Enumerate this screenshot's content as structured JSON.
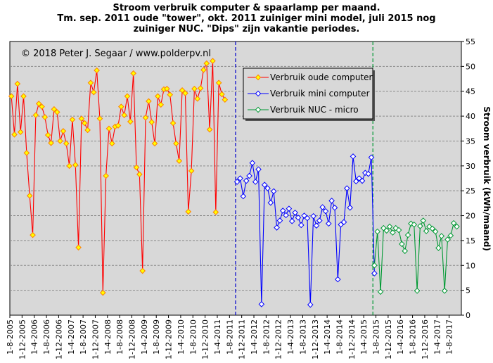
{
  "chart_data": {
    "type": "line",
    "title": [
      "Stroom verbruik computer & spaarlamp per maand.",
      "Tm. sep. 2011 oude \"tower\", okt. 2011 zuiniger mini model, juli 2015 nog",
      "zuiniger NUC. \"Dips\" zijn vakantie periodes."
    ],
    "copyright": "© 2018  Peter J. Segaar / www.polderpv.nl",
    "ylabel": "Stroom verbruik (kWh/maand)",
    "ylim": [
      0,
      55
    ],
    "yticks": [
      0,
      5,
      10,
      15,
      20,
      25,
      30,
      35,
      40,
      45,
      50,
      55
    ],
    "xticks": [
      "1-8-2005",
      "1-12-2005",
      "1-4-2006",
      "1-8-2006",
      "1-12-2006",
      "1-4-2007",
      "1-8-2007",
      "1-12-2007",
      "1-4-2008",
      "1-8-2008",
      "1-12-2008",
      "1-4-2009",
      "1-8-2009",
      "1-12-2009",
      "1-4-2010",
      "1-8-2010",
      "1-12-2010",
      "1-4-2011",
      "1-8-2011",
      "1-12-2011",
      "1-4-2012",
      "1-8-2012",
      "1-12-2012",
      "1-4-2013",
      "1-8-2013",
      "1-12-2013",
      "1-4-2014",
      "1-8-2014",
      "1-12-2014",
      "1-4-2015",
      "1-8-2015",
      "1-12-2015",
      "1-4-2016",
      "1-8-2016",
      "1-12-2016",
      "1-4-2017",
      "1-8-2017"
    ],
    "grid": "horizontal",
    "legend_position": "top-right",
    "markers_vertical": [
      {
        "after_month_index": 73,
        "color": "#0000cc"
      },
      {
        "after_month_index": 118,
        "color": "#009933"
      }
    ],
    "series": [
      {
        "name": "Verbruik oude computer",
        "color": "#ff0000",
        "marker_fill": "#ffff00",
        "marker_stroke": "#ff8000",
        "start_month_index": 0,
        "values": [
          44,
          36.3,
          46.5,
          36.8,
          44,
          32.6,
          24,
          16.1,
          40.2,
          42.5,
          41.9,
          39.8,
          36.2,
          34.6,
          41.4,
          40.8,
          35,
          37,
          34.5,
          30,
          39.3,
          30.2,
          13.6,
          39.5,
          38.6,
          37.2,
          46.7,
          44.8,
          49.2,
          39.5,
          4.5,
          28,
          37.5,
          34.5,
          37.9,
          38.1,
          41.9,
          40.2,
          44,
          38.9,
          48.6,
          29.7,
          28.3,
          8.9,
          39.7,
          43,
          38.8,
          34.5,
          44,
          42.3,
          45.4,
          45.5,
          44.3,
          38.6,
          34.5,
          31,
          45.2,
          44.6,
          20.8,
          29,
          45.5,
          43.5,
          45.6,
          49.3,
          50.6,
          37.3,
          51.1,
          20.7,
          46.7,
          44.4,
          43.3
        ]
      },
      {
        "name": "Verbruik mini computer",
        "color": "#0000ff",
        "marker_fill": "#ffffff",
        "marker_stroke": "#0000ff",
        "start_month_index": 74,
        "values": [
          26.8,
          27.5,
          23.9,
          27,
          28,
          30.6,
          26.8,
          29.3,
          2.2,
          26.2,
          25.5,
          22.6,
          24.9,
          17.6,
          19,
          21,
          20.1,
          21.4,
          18.9,
          20.6,
          19.6,
          18.1,
          20,
          19.5,
          2.1,
          19.9,
          18,
          19,
          21.7,
          20.9,
          18.4,
          23,
          21.6,
          7.2,
          18.2,
          18.7,
          25.5,
          21.6,
          31.9,
          26.9,
          27.5,
          27,
          28.6,
          28.4,
          31.7,
          8.4
        ]
      },
      {
        "name": "Verbruik NUC - micro",
        "color": "#009933",
        "marker_fill": "#ffffff",
        "marker_stroke": "#009933",
        "start_month_index": 119,
        "values": [
          10,
          16.8,
          4.7,
          17.5,
          17,
          17.8,
          16.6,
          17.5,
          17.1,
          14.3,
          12.9,
          16.1,
          18.4,
          18.2,
          4.9,
          17.9,
          19,
          16.9,
          17.8,
          17.4,
          16.8,
          13.5,
          15.9,
          4.9,
          15.2,
          16,
          18.5,
          17.8
        ]
      }
    ]
  }
}
